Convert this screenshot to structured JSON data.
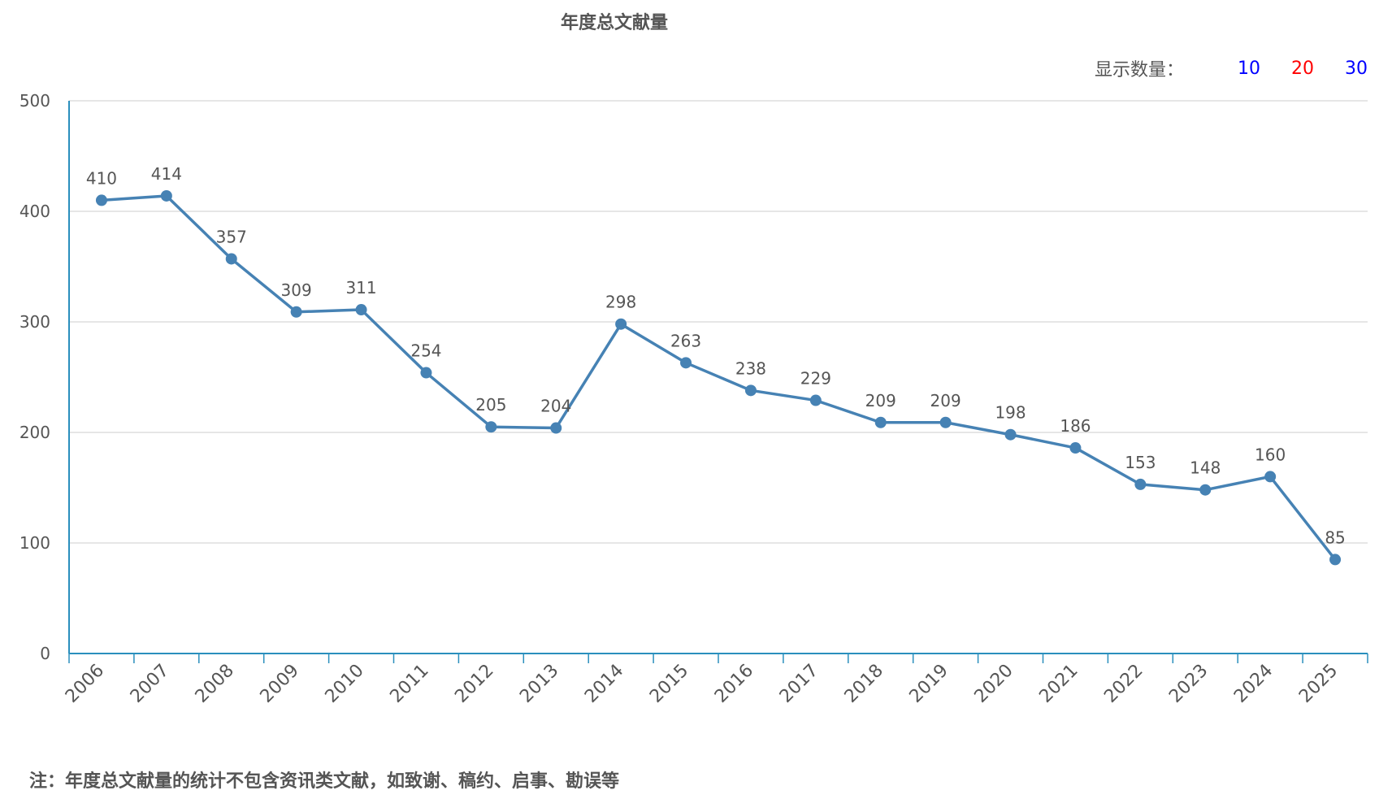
{
  "title": "年度总文献量",
  "count_selector": {
    "label": "显示数量：",
    "options": [
      {
        "label": "10",
        "color": "#0000ff"
      },
      {
        "label": "20",
        "color": "#ff0000"
      },
      {
        "label": "30",
        "color": "#0000ff"
      }
    ]
  },
  "footnote": "注：年度总文献量的统计不包含资讯类文献，如致谢、稿约、启事、勘误等",
  "colors": {
    "series": "#4682b4",
    "axis": "#2a8fbd",
    "grid": "#cccccc"
  },
  "chart_data": {
    "type": "line",
    "title": "年度总文献量",
    "xlabel": "",
    "ylabel": "",
    "categories": [
      "2006",
      "2007",
      "2008",
      "2009",
      "2010",
      "2011",
      "2012",
      "2013",
      "2014",
      "2015",
      "2016",
      "2017",
      "2018",
      "2019",
      "2020",
      "2021",
      "2022",
      "2023",
      "2024",
      "2025"
    ],
    "series": [
      {
        "values": [
          410,
          414,
          357,
          309,
          311,
          254,
          205,
          204,
          298,
          263,
          238,
          229,
          209,
          209,
          198,
          186,
          153,
          148,
          160,
          85
        ]
      }
    ],
    "ylim": [
      0,
      500
    ],
    "yticks": [
      0,
      100,
      200,
      300,
      400,
      500
    ],
    "grid": true,
    "data_labels": true
  }
}
